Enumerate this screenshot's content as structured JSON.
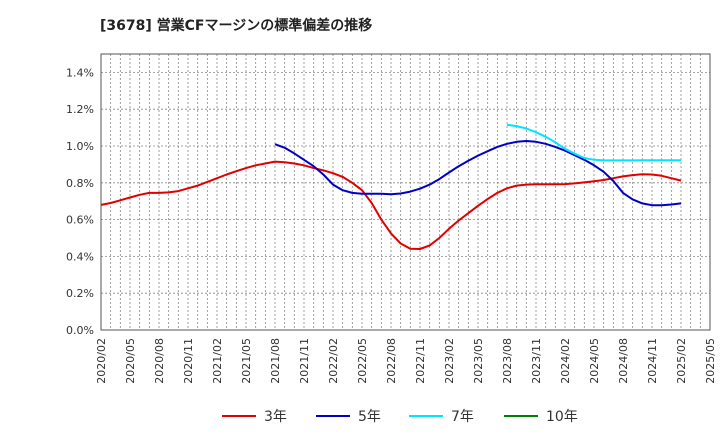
{
  "chart_data": {
    "type": "line",
    "title": "[3678]  営業CFマージンの標準偏差の推移",
    "xlabel": "",
    "ylabel": "",
    "ylim": [
      0,
      1.5
    ],
    "yticks": [
      "0.0%",
      "0.2%",
      "0.4%",
      "0.6%",
      "0.8%",
      "1.0%",
      "1.2%",
      "1.4%"
    ],
    "xticks": [
      "2020/02",
      "2020/05",
      "2020/08",
      "2020/11",
      "2021/02",
      "2021/05",
      "2021/08",
      "2021/11",
      "2022/02",
      "2022/05",
      "2022/08",
      "2022/11",
      "2023/02",
      "2023/05",
      "2023/08",
      "2023/11",
      "2024/02",
      "2024/05",
      "2024/08",
      "2024/11",
      "2025/02",
      "2025/05"
    ],
    "grid": true,
    "legend": "bottom",
    "series": [
      {
        "name": "3年",
        "color": "#e00000",
        "points": [
          [
            "2020/02",
            0.68
          ],
          [
            "2020/03",
            0.69
          ],
          [
            "2020/04",
            0.705
          ],
          [
            "2020/05",
            0.72
          ],
          [
            "2020/06",
            0.735
          ],
          [
            "2020/07",
            0.745
          ],
          [
            "2020/08",
            0.745
          ],
          [
            "2020/09",
            0.748
          ],
          [
            "2020/10",
            0.755
          ],
          [
            "2020/11",
            0.77
          ],
          [
            "2020/12",
            0.785
          ],
          [
            "2021/01",
            0.805
          ],
          [
            "2021/02",
            0.825
          ],
          [
            "2021/03",
            0.845
          ],
          [
            "2021/04",
            0.863
          ],
          [
            "2021/05",
            0.88
          ],
          [
            "2021/06",
            0.895
          ],
          [
            "2021/07",
            0.905
          ],
          [
            "2021/08",
            0.915
          ],
          [
            "2021/09",
            0.912
          ],
          [
            "2021/10",
            0.905
          ],
          [
            "2021/11",
            0.895
          ],
          [
            "2021/12",
            0.88
          ],
          [
            "2022/01",
            0.868
          ],
          [
            "2022/02",
            0.852
          ],
          [
            "2022/03",
            0.832
          ],
          [
            "2022/04",
            0.8
          ],
          [
            "2022/05",
            0.76
          ],
          [
            "2022/06",
            0.69
          ],
          [
            "2022/07",
            0.6
          ],
          [
            "2022/08",
            0.525
          ],
          [
            "2022/09",
            0.47
          ],
          [
            "2022/10",
            0.442
          ],
          [
            "2022/11",
            0.44
          ],
          [
            "2022/12",
            0.46
          ],
          [
            "2023/01",
            0.5
          ],
          [
            "2023/02",
            0.55
          ],
          [
            "2023/03",
            0.595
          ],
          [
            "2023/04",
            0.635
          ],
          [
            "2023/05",
            0.675
          ],
          [
            "2023/06",
            0.712
          ],
          [
            "2023/07",
            0.745
          ],
          [
            "2023/08",
            0.77
          ],
          [
            "2023/09",
            0.785
          ],
          [
            "2023/10",
            0.79
          ],
          [
            "2023/11",
            0.792
          ],
          [
            "2023/12",
            0.792
          ],
          [
            "2024/01",
            0.792
          ],
          [
            "2024/02",
            0.793
          ],
          [
            "2024/03",
            0.797
          ],
          [
            "2024/04",
            0.802
          ],
          [
            "2024/05",
            0.808
          ],
          [
            "2024/06",
            0.815
          ],
          [
            "2024/07",
            0.825
          ],
          [
            "2024/08",
            0.835
          ],
          [
            "2024/09",
            0.842
          ],
          [
            "2024/10",
            0.846
          ],
          [
            "2024/11",
            0.845
          ],
          [
            "2024/12",
            0.838
          ],
          [
            "2025/01",
            0.825
          ],
          [
            "2025/02",
            0.812
          ]
        ]
      },
      {
        "name": "5年",
        "color": "#0000c8",
        "points": [
          [
            "2021/08",
            1.01
          ],
          [
            "2021/09",
            0.99
          ],
          [
            "2021/10",
            0.96
          ],
          [
            "2021/11",
            0.925
          ],
          [
            "2021/12",
            0.89
          ],
          [
            "2022/01",
            0.845
          ],
          [
            "2022/02",
            0.79
          ],
          [
            "2022/03",
            0.76
          ],
          [
            "2022/04",
            0.745
          ],
          [
            "2022/05",
            0.74
          ],
          [
            "2022/06",
            0.74
          ],
          [
            "2022/07",
            0.74
          ],
          [
            "2022/08",
            0.738
          ],
          [
            "2022/09",
            0.742
          ],
          [
            "2022/10",
            0.752
          ],
          [
            "2022/11",
            0.768
          ],
          [
            "2022/12",
            0.79
          ],
          [
            "2023/01",
            0.82
          ],
          [
            "2023/02",
            0.856
          ],
          [
            "2023/03",
            0.89
          ],
          [
            "2023/04",
            0.92
          ],
          [
            "2023/05",
            0.948
          ],
          [
            "2023/06",
            0.972
          ],
          [
            "2023/07",
            0.995
          ],
          [
            "2023/08",
            1.012
          ],
          [
            "2023/09",
            1.023
          ],
          [
            "2023/10",
            1.027
          ],
          [
            "2023/11",
            1.023
          ],
          [
            "2023/12",
            1.012
          ],
          [
            "2024/01",
            0.995
          ],
          [
            "2024/02",
            0.975
          ],
          [
            "2024/03",
            0.95
          ],
          [
            "2024/04",
            0.925
          ],
          [
            "2024/05",
            0.895
          ],
          [
            "2024/06",
            0.86
          ],
          [
            "2024/07",
            0.81
          ],
          [
            "2024/08",
            0.745
          ],
          [
            "2024/09",
            0.71
          ],
          [
            "2024/10",
            0.688
          ],
          [
            "2024/11",
            0.678
          ],
          [
            "2024/12",
            0.678
          ],
          [
            "2025/01",
            0.682
          ],
          [
            "2025/02",
            0.688
          ]
        ]
      },
      {
        "name": "7年",
        "color": "#00e5ff",
        "points": [
          [
            "2023/08",
            1.115
          ],
          [
            "2023/09",
            1.108
          ],
          [
            "2023/10",
            1.095
          ],
          [
            "2023/11",
            1.075
          ],
          [
            "2023/12",
            1.05
          ],
          [
            "2024/01",
            1.02
          ],
          [
            "2024/02",
            0.985
          ],
          [
            "2024/03",
            0.958
          ],
          [
            "2024/04",
            0.935
          ],
          [
            "2024/05",
            0.925
          ],
          [
            "2024/06",
            0.922
          ],
          [
            "2024/07",
            0.922
          ],
          [
            "2024/08",
            0.922
          ],
          [
            "2024/09",
            0.922
          ],
          [
            "2024/10",
            0.923
          ],
          [
            "2024/11",
            0.923
          ],
          [
            "2024/12",
            0.923
          ],
          [
            "2025/01",
            0.923
          ],
          [
            "2025/02",
            0.923
          ]
        ]
      },
      {
        "name": "10年",
        "color": "#008000",
        "points": []
      }
    ]
  }
}
